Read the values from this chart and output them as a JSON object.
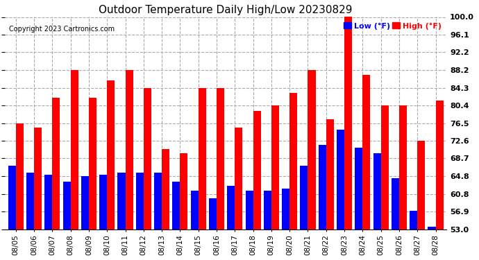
{
  "title": "Outdoor Temperature Daily High/Low 20230829",
  "copyright": "Copyright 2023 Cartronics.com",
  "legend_low": "Low (°F)",
  "legend_high": "High (°F)",
  "color_low": "#0000ff",
  "color_high": "#ff0000",
  "background_color": "#ffffff",
  "plot_bg_color": "#ffffff",
  "grid_color": "#aaaaaa",
  "ylim": [
    53.0,
    100.0
  ],
  "yticks": [
    53.0,
    56.9,
    60.8,
    64.8,
    68.7,
    72.6,
    76.5,
    80.4,
    84.3,
    88.2,
    92.2,
    96.1,
    100.0
  ],
  "dates": [
    "08/05",
    "08/06",
    "08/07",
    "08/08",
    "08/09",
    "08/10",
    "08/11",
    "08/12",
    "08/13",
    "08/14",
    "08/15",
    "08/16",
    "08/17",
    "08/18",
    "08/19",
    "08/20",
    "08/21",
    "08/22",
    "08/23",
    "08/24",
    "08/25",
    "08/26",
    "08/27",
    "08/28"
  ],
  "highs": [
    76.5,
    75.5,
    82.1,
    88.2,
    82.1,
    86.0,
    88.2,
    84.3,
    70.7,
    69.8,
    84.3,
    84.3,
    75.5,
    79.2,
    80.4,
    83.2,
    88.2,
    77.4,
    100.0,
    87.1,
    80.4,
    80.4,
    72.6,
    81.5
  ],
  "lows": [
    67.1,
    65.5,
    65.0,
    63.5,
    64.8,
    65.0,
    65.5,
    65.5,
    65.5,
    63.5,
    61.5,
    59.9,
    62.6,
    61.5,
    61.5,
    62.0,
    67.0,
    71.6,
    75.0,
    71.0,
    69.8,
    64.3,
    57.0,
    53.5
  ],
  "ymin": 53.0,
  "figsize": [
    6.9,
    3.75
  ],
  "dpi": 100,
  "title_fontsize": 11,
  "tick_fontsize": 8,
  "copyright_fontsize": 7,
  "legend_fontsize": 8
}
